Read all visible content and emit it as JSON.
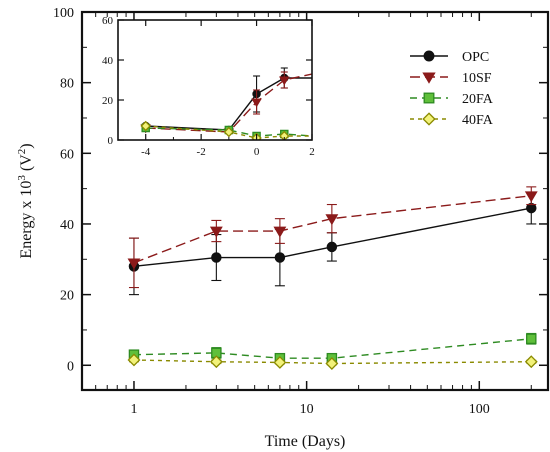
{
  "chart_data": [
    {
      "type": "line",
      "id": "main",
      "title": "",
      "xlabel": "Time (Days)",
      "ylabel_text": "Energy x 10",
      "ylabel_exp": "3",
      "ylabel_unit": " (V",
      "ylabel_unit_exp": "2",
      "ylabel_close": ")",
      "xscale": "log",
      "xlim": [
        0.5,
        250
      ],
      "ylim": [
        -7,
        100
      ],
      "xticks": [
        {
          "v": 1,
          "label": "1"
        },
        {
          "v": 10,
          "label": "10"
        },
        {
          "v": 100,
          "label": "100"
        }
      ],
      "yticks": [
        {
          "v": 0,
          "label": "0"
        },
        {
          "v": 20,
          "label": "20"
        },
        {
          "v": 40,
          "label": "40"
        },
        {
          "v": 60,
          "label": "60"
        },
        {
          "v": 80,
          "label": "80"
        },
        {
          "v": 100,
          "label": "100"
        }
      ],
      "legend_position": "top-right",
      "grid": false,
      "series": [
        {
          "name": "OPC",
          "marker": "circle",
          "color": "#111111",
          "fill": "#111111",
          "dash": "",
          "x": [
            1,
            3,
            7,
            14,
            200
          ],
          "y": [
            28,
            30.5,
            30.5,
            33.5,
            44.5
          ],
          "err": [
            8,
            6.5,
            8,
            4,
            4.5
          ]
        },
        {
          "name": "10SF",
          "marker": "triangle-down",
          "color": "#8b1a1a",
          "fill": "#8b1a1a",
          "dash": "10,5",
          "x": [
            1,
            3,
            7,
            14,
            200
          ],
          "y": [
            29,
            38,
            38,
            41.5,
            48
          ],
          "err": [
            7,
            3,
            3.5,
            4,
            2.5
          ]
        },
        {
          "name": "20FA",
          "marker": "square",
          "color": "#2e8b22",
          "fill": "#5fbf3a",
          "dash": "7,5",
          "x": [
            1,
            3,
            7,
            14,
            200
          ],
          "y": [
            3,
            3.5,
            2,
            2,
            7.5
          ],
          "err": [
            1.2,
            1.5,
            0.8,
            0.8,
            1.5
          ]
        },
        {
          "name": "40FA",
          "marker": "diamond",
          "color": "#8a8a00",
          "fill": "#f2f27a",
          "dash": "4,4",
          "x": [
            1,
            3,
            7,
            14,
            200
          ],
          "y": [
            1.5,
            1,
            0.8,
            0.5,
            1
          ],
          "err": [
            0.5,
            0.5,
            0.4,
            0.4,
            0.4
          ]
        }
      ]
    },
    {
      "type": "line",
      "id": "inset",
      "xlim": [
        -5,
        2
      ],
      "ylim": [
        0,
        60
      ],
      "xticks": [
        {
          "v": -4,
          "label": "-4"
        },
        {
          "v": -2,
          "label": "-2"
        },
        {
          "v": 0,
          "label": "0"
        },
        {
          "v": 2,
          "label": "2"
        }
      ],
      "yticks": [
        {
          "v": 0,
          "label": "0"
        },
        {
          "v": 20,
          "label": "20"
        },
        {
          "v": 40,
          "label": "40"
        },
        {
          "v": 60,
          "label": "60"
        }
      ],
      "series": [
        {
          "name": "OPC",
          "marker": "circle",
          "color": "#111111",
          "fill": "#111111",
          "dash": "",
          "x": [
            -4,
            -1,
            0,
            1,
            2
          ],
          "y": [
            7,
            5,
            23,
            31,
            31
          ],
          "err": [
            0,
            0,
            9,
            5,
            0
          ],
          "markers": [
            true,
            true,
            true,
            true,
            false
          ]
        },
        {
          "name": "10SF",
          "marker": "triangle-down",
          "color": "#8b1a1a",
          "fill": "#8b1a1a",
          "dash": "10,5",
          "x": [
            -4,
            -1,
            0,
            1,
            2
          ],
          "y": [
            6,
            4,
            19,
            30,
            33
          ],
          "err": [
            0,
            0,
            6,
            4,
            0
          ],
          "markers": [
            true,
            true,
            true,
            true,
            false
          ]
        },
        {
          "name": "20FA",
          "marker": "square",
          "color": "#2e8b22",
          "fill": "#5fbf3a",
          "dash": "7,5",
          "x": [
            -4,
            -1,
            0,
            1,
            2
          ],
          "y": [
            6,
            5,
            2,
            3,
            2
          ],
          "err": [
            0,
            0,
            0,
            0,
            0
          ],
          "markers": [
            true,
            true,
            true,
            true,
            false
          ]
        },
        {
          "name": "40FA",
          "marker": "diamond",
          "color": "#8a8a00",
          "fill": "#f2f27a",
          "dash": "4,4",
          "x": [
            -4,
            -1,
            0,
            1,
            2
          ],
          "y": [
            7,
            4,
            1,
            2,
            2
          ],
          "err": [
            0,
            0,
            0,
            0,
            0
          ],
          "markers": [
            true,
            true,
            true,
            true,
            false
          ]
        }
      ]
    }
  ]
}
